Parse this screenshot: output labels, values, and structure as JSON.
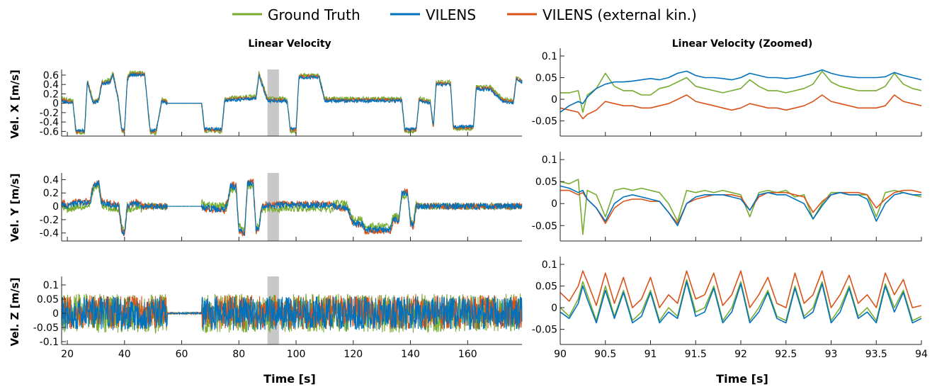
{
  "legend": [
    {
      "label": "Ground Truth",
      "color": "#77ac30"
    },
    {
      "label": "VILENS",
      "color": "#0072bd"
    },
    {
      "label": "VILENS (external kin.)",
      "color": "#d95319"
    }
  ],
  "left_panel": {
    "title": "Linear Velocity",
    "xlabel": "Time [s]"
  },
  "right_panel": {
    "title": "Linear Velocity (Zoomed)",
    "xlabel": "Time [s]"
  },
  "highlight": {
    "x_start": 90,
    "x_end": 94,
    "color": "#c8c8c8"
  },
  "chart_data": [
    {
      "type": "line",
      "name": "left-x",
      "ylabel": "Vel. X [m/s]",
      "xlim": [
        18,
        179
      ],
      "ylim": [
        -0.7,
        0.72
      ],
      "yticks": [
        -0.6,
        -0.4,
        -0.2,
        0,
        0.2,
        0.4,
        0.6
      ],
      "ytick_labels": [
        "-0.6",
        "-0.4",
        "-0.2",
        "0",
        "0.2",
        "0.4",
        "0.6"
      ],
      "osc_amp": 0.06,
      "segments": [
        [
          18,
          0.05
        ],
        [
          22,
          0
        ],
        [
          23,
          -0.58
        ],
        [
          26,
          -0.58
        ],
        [
          27,
          0.45
        ],
        [
          29,
          0
        ],
        [
          31,
          0.05
        ],
        [
          32,
          0.4
        ],
        [
          35,
          0.45
        ],
        [
          36,
          0.6
        ],
        [
          37,
          0.3
        ],
        [
          38,
          0
        ],
        [
          39,
          -0.55
        ],
        [
          40,
          -0.55
        ],
        [
          41,
          0.5
        ],
        [
          42,
          0.6
        ],
        [
          47,
          0.6
        ],
        [
          48,
          0
        ],
        [
          49,
          -0.58
        ],
        [
          51,
          -0.58
        ],
        [
          53,
          0.05
        ],
        [
          55,
          0
        ],
        [
          67,
          0
        ],
        [
          68,
          -0.55
        ],
        [
          74,
          -0.55
        ],
        [
          75,
          0.05
        ],
        [
          86,
          0.1
        ],
        [
          87,
          0.6
        ],
        [
          90,
          0.05
        ],
        [
          96,
          0.05
        ],
        [
          97,
          0
        ],
        [
          98,
          -0.55
        ],
        [
          100,
          -0.55
        ],
        [
          101,
          0.55
        ],
        [
          108,
          0.55
        ],
        [
          109,
          0.3
        ],
        [
          110,
          0.05
        ],
        [
          137,
          0.05
        ],
        [
          138,
          -0.55
        ],
        [
          142,
          -0.55
        ],
        [
          143,
          0.05
        ],
        [
          147,
          0
        ],
        [
          148,
          -0.5
        ],
        [
          149,
          0.4
        ],
        [
          154,
          0.4
        ],
        [
          155,
          -0.5
        ],
        [
          162,
          -0.5
        ],
        [
          163,
          0.3
        ],
        [
          168,
          0.3
        ],
        [
          172,
          0.05
        ],
        [
          176,
          0
        ],
        [
          177,
          0.5
        ],
        [
          179,
          0.45
        ]
      ],
      "offsets": {
        "gt": 0.05,
        "vil": 0,
        "ext": 0.02
      },
      "xticks": []
    },
    {
      "type": "line",
      "name": "left-y",
      "ylabel": "Vel. Y [m/s]",
      "xlim": [
        18,
        179
      ],
      "ylim": [
        -0.52,
        0.5
      ],
      "yticks": [
        -0.4,
        -0.2,
        0,
        0.2,
        0.4
      ],
      "ytick_labels": [
        "-0.4",
        "-0.2",
        "0",
        "0.2",
        "0.4"
      ],
      "osc_amp": 0.08,
      "segments": [
        [
          18,
          0.05
        ],
        [
          20,
          0
        ],
        [
          23,
          0.05
        ],
        [
          28,
          0.05
        ],
        [
          29,
          0.3
        ],
        [
          31,
          0.35
        ],
        [
          32,
          0.05
        ],
        [
          38,
          0
        ],
        [
          39,
          -0.35
        ],
        [
          40,
          -0.4
        ],
        [
          41,
          0
        ],
        [
          45,
          0.05
        ],
        [
          46,
          0
        ],
        [
          55,
          0
        ],
        [
          67,
          0
        ],
        [
          68,
          -0.02
        ],
        [
          75,
          -0.05
        ],
        [
          76,
          0.05
        ],
        [
          77,
          0.3
        ],
        [
          79,
          0.3
        ],
        [
          80,
          -0.35
        ],
        [
          82,
          -0.4
        ],
        [
          83,
          0.35
        ],
        [
          85,
          0.35
        ],
        [
          86,
          -0.35
        ],
        [
          87,
          -0.35
        ],
        [
          88,
          0
        ],
        [
          96,
          0.02
        ],
        [
          108,
          0.02
        ],
        [
          118,
          -0.02
        ],
        [
          120,
          -0.25
        ],
        [
          123,
          -0.25
        ],
        [
          124,
          -0.35
        ],
        [
          133,
          -0.35
        ],
        [
          134,
          -0.2
        ],
        [
          136,
          -0.2
        ],
        [
          137,
          0.2
        ],
        [
          139,
          0.2
        ],
        [
          140,
          -0.25
        ],
        [
          141,
          -0.3
        ],
        [
          142,
          0
        ],
        [
          160,
          0
        ],
        [
          170,
          0
        ],
        [
          179,
          0
        ]
      ],
      "offsets": {
        "gt": -0.05,
        "vil": 0,
        "ext": 0.02
      },
      "xticks": []
    },
    {
      "type": "line",
      "name": "left-z",
      "ylabel": "Vel. Z [m/s]",
      "xlim": [
        18,
        179
      ],
      "ylim": [
        -0.11,
        0.13
      ],
      "yticks": [
        -0.1,
        -0.05,
        0,
        0.05,
        0.1
      ],
      "ytick_labels": [
        "-0.1",
        "-0.05",
        "0",
        "0.05",
        "0.1"
      ],
      "osc_amp": 0.06,
      "segments": [
        [
          18,
          0
        ],
        [
          54,
          0
        ],
        [
          55,
          0
        ],
        [
          67,
          0
        ],
        [
          68,
          0
        ],
        [
          179,
          0
        ]
      ],
      "quiet": [
        [
          55,
          67
        ]
      ],
      "offsets": {
        "gt": 0,
        "vil": 0,
        "ext": 0.01
      },
      "xticks": [
        20,
        40,
        60,
        80,
        100,
        120,
        140,
        160
      ],
      "xtick_labels": [
        "20",
        "40",
        "60",
        "80",
        "100",
        "120",
        "140",
        "160"
      ]
    },
    {
      "type": "line",
      "name": "zoom-x",
      "ylabel": "",
      "xlim": [
        90,
        94
      ],
      "ylim": [
        -0.085,
        0.118
      ],
      "yticks": [
        -0.05,
        0,
        0.05,
        0.1
      ],
      "ytick_labels": [
        "-0.05",
        "0",
        "0.05",
        "0.1"
      ],
      "x": [
        90,
        90.1,
        90.2,
        90.25,
        90.3,
        90.4,
        90.5,
        90.6,
        90.7,
        90.8,
        90.9,
        91,
        91.1,
        91.2,
        91.3,
        91.4,
        91.5,
        91.6,
        91.7,
        91.8,
        91.9,
        92,
        92.1,
        92.2,
        92.3,
        92.4,
        92.5,
        92.6,
        92.7,
        92.8,
        92.9,
        93,
        93.1,
        93.2,
        93.3,
        93.4,
        93.5,
        93.6,
        93.7,
        93.8,
        93.9,
        94
      ],
      "series": [
        {
          "name": "Ground Truth",
          "color": "#77ac30",
          "values": [
            0.015,
            0.015,
            0.02,
            -0.03,
            0.01,
            0.025,
            0.06,
            0.03,
            0.02,
            0.02,
            0.01,
            0.01,
            0.025,
            0.03,
            0.04,
            0.05,
            0.03,
            0.025,
            0.02,
            0.015,
            0.02,
            0.025,
            0.045,
            0.03,
            0.02,
            0.02,
            0.015,
            0.02,
            0.025,
            0.035,
            0.065,
            0.04,
            0.03,
            0.025,
            0.02,
            0.02,
            0.02,
            0.03,
            0.06,
            0.035,
            0.025,
            0.02
          ]
        },
        {
          "name": "VILENS",
          "color": "#0072bd",
          "values": [
            -0.03,
            -0.015,
            -0.005,
            -0.01,
            0.005,
            0.025,
            0.035,
            0.04,
            0.04,
            0.042,
            0.045,
            0.048,
            0.045,
            0.05,
            0.06,
            0.065,
            0.055,
            0.05,
            0.05,
            0.048,
            0.045,
            0.05,
            0.06,
            0.055,
            0.05,
            0.05,
            0.048,
            0.05,
            0.055,
            0.06,
            0.068,
            0.06,
            0.055,
            0.052,
            0.05,
            0.05,
            0.05,
            0.052,
            0.062,
            0.055,
            0.05,
            0.045
          ]
        },
        {
          "name": "VILENS (external kin.)",
          "color": "#d95319",
          "values": [
            -0.02,
            -0.025,
            -0.03,
            -0.045,
            -0.035,
            -0.025,
            -0.005,
            -0.01,
            -0.015,
            -0.015,
            -0.02,
            -0.02,
            -0.015,
            -0.01,
            0.0,
            0.01,
            -0.005,
            -0.01,
            -0.015,
            -0.02,
            -0.025,
            -0.02,
            -0.01,
            -0.015,
            -0.02,
            -0.02,
            -0.025,
            -0.02,
            -0.015,
            -0.005,
            0.01,
            -0.005,
            -0.01,
            -0.015,
            -0.02,
            -0.02,
            -0.02,
            -0.015,
            0.01,
            -0.005,
            -0.01,
            -0.015
          ]
        }
      ],
      "xticks": []
    },
    {
      "type": "line",
      "name": "zoom-y",
      "ylabel": "",
      "xlim": [
        90,
        94
      ],
      "ylim": [
        -0.085,
        0.118
      ],
      "yticks": [
        -0.05,
        0,
        0.05,
        0.1
      ],
      "ytick_labels": [
        "-0.05",
        "0",
        "0.05",
        "0.1"
      ],
      "x": [
        90,
        90.1,
        90.2,
        90.25,
        90.3,
        90.4,
        90.5,
        90.6,
        90.7,
        90.8,
        90.9,
        91,
        91.1,
        91.2,
        91.3,
        91.4,
        91.5,
        91.6,
        91.7,
        91.8,
        91.9,
        92,
        92.1,
        92.2,
        92.3,
        92.4,
        92.5,
        92.6,
        92.7,
        92.8,
        92.9,
        93,
        93.1,
        93.2,
        93.3,
        93.4,
        93.5,
        93.6,
        93.7,
        93.8,
        93.9,
        94
      ],
      "series": [
        {
          "name": "Ground Truth",
          "color": "#77ac30",
          "values": [
            0.05,
            0.045,
            0.055,
            -0.07,
            0.03,
            0.02,
            -0.03,
            0.03,
            0.035,
            0.03,
            0.035,
            0.03,
            0.025,
            0.0,
            -0.04,
            0.03,
            0.025,
            0.03,
            0.025,
            0.03,
            0.025,
            0.02,
            -0.03,
            0.025,
            0.03,
            0.025,
            0.03,
            0.015,
            0.02,
            -0.035,
            0.0,
            0.025,
            0.025,
            0.02,
            0.02,
            0.02,
            -0.03,
            0.025,
            0.03,
            0.025,
            0.02,
            0.015
          ]
        },
        {
          "name": "VILENS",
          "color": "#0072bd",
          "values": [
            0.04,
            0.035,
            0.025,
            0.03,
            0.01,
            -0.01,
            -0.04,
            0.0,
            0.015,
            0.02,
            0.015,
            0.01,
            0.005,
            -0.02,
            -0.05,
            0.0,
            0.015,
            0.02,
            0.02,
            0.02,
            0.015,
            0.01,
            -0.015,
            0.02,
            0.025,
            0.02,
            0.02,
            0.01,
            0.0,
            -0.035,
            -0.005,
            0.02,
            0.025,
            0.02,
            0.02,
            0.01,
            -0.04,
            0.0,
            0.02,
            0.025,
            0.02,
            0.02
          ]
        },
        {
          "name": "VILENS (external kin.)",
          "color": "#d95319",
          "values": [
            0.03,
            0.03,
            0.02,
            0.025,
            0.01,
            -0.01,
            -0.045,
            -0.01,
            0.005,
            0.01,
            0.01,
            0.005,
            0.005,
            -0.02,
            -0.045,
            0.0,
            0.01,
            0.015,
            0.02,
            0.02,
            0.02,
            0.015,
            -0.015,
            0.015,
            0.025,
            0.025,
            0.025,
            0.02,
            0.015,
            -0.02,
            0.005,
            0.02,
            0.025,
            0.025,
            0.025,
            0.02,
            -0.01,
            0.01,
            0.025,
            0.03,
            0.03,
            0.025
          ]
        }
      ],
      "xticks": []
    },
    {
      "type": "line",
      "name": "zoom-z",
      "ylabel": "",
      "xlim": [
        90,
        94
      ],
      "ylim": [
        -0.085,
        0.118
      ],
      "yticks": [
        -0.05,
        0,
        0.05,
        0.1
      ],
      "ytick_labels": [
        "-0.05",
        "0",
        "0.05",
        "0.1"
      ],
      "x": [
        90,
        90.1,
        90.2,
        90.25,
        90.3,
        90.4,
        90.5,
        90.6,
        90.7,
        90.8,
        90.9,
        91,
        91.1,
        91.2,
        91.3,
        91.4,
        91.5,
        91.6,
        91.7,
        91.8,
        91.9,
        92,
        92.1,
        92.2,
        92.3,
        92.4,
        92.5,
        92.6,
        92.7,
        92.8,
        92.9,
        93,
        93.1,
        93.2,
        93.3,
        93.4,
        93.5,
        93.6,
        93.7,
        93.8,
        93.9,
        94
      ],
      "series": [
        {
          "name": "Ground Truth",
          "color": "#77ac30",
          "values": [
            0.0,
            -0.02,
            0.02,
            0.06,
            0.03,
            -0.03,
            0.05,
            -0.02,
            0.04,
            -0.03,
            -0.01,
            0.04,
            -0.03,
            0.0,
            -0.02,
            0.065,
            -0.01,
            0.0,
            0.05,
            -0.03,
            0.0,
            0.06,
            -0.03,
            0.0,
            0.04,
            -0.02,
            -0.03,
            0.05,
            -0.02,
            0.0,
            0.06,
            -0.03,
            0.0,
            0.05,
            -0.02,
            0.0,
            -0.03,
            0.055,
            0.0,
            0.04,
            -0.03,
            -0.02
          ]
        },
        {
          "name": "VILENS",
          "color": "#0072bd",
          "values": [
            -0.01,
            -0.025,
            0.01,
            0.05,
            0.02,
            -0.035,
            0.04,
            -0.025,
            0.035,
            -0.035,
            -0.02,
            0.035,
            -0.035,
            -0.01,
            -0.025,
            0.06,
            -0.02,
            -0.01,
            0.045,
            -0.035,
            -0.01,
            0.055,
            -0.035,
            -0.01,
            0.035,
            -0.025,
            -0.035,
            0.045,
            -0.025,
            -0.01,
            0.055,
            -0.035,
            -0.01,
            0.045,
            -0.025,
            -0.01,
            -0.035,
            0.05,
            -0.01,
            0.035,
            -0.035,
            -0.025
          ]
        },
        {
          "name": "VILENS (external kin.)",
          "color": "#d95319",
          "values": [
            0.035,
            0.015,
            0.05,
            0.085,
            0.06,
            0.005,
            0.08,
            0.01,
            0.07,
            0.0,
            0.02,
            0.07,
            0.0,
            0.03,
            0.01,
            0.085,
            0.02,
            0.03,
            0.08,
            0.005,
            0.03,
            0.085,
            0.0,
            0.03,
            0.07,
            0.01,
            0.0,
            0.08,
            0.01,
            0.03,
            0.085,
            0.0,
            0.03,
            0.075,
            0.01,
            0.03,
            0.0,
            0.08,
            0.03,
            0.065,
            0.0,
            0.005
          ]
        }
      ],
      "xticks": [
        90,
        90.5,
        91,
        91.5,
        92,
        92.5,
        93,
        93.5,
        94
      ],
      "xtick_labels": [
        "90",
        "90.5",
        "91",
        "91.5",
        "92",
        "92.5",
        "93",
        "93.5",
        "94"
      ]
    }
  ]
}
